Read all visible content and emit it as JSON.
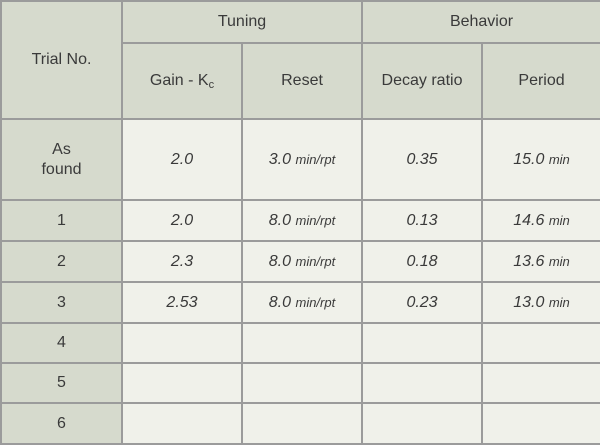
{
  "table": {
    "col_trial": "Trial No.",
    "group_tuning": "Tuning",
    "group_behavior": "Behavior",
    "col_gain": "Gain - K",
    "col_gain_sub": "c",
    "col_reset": "Reset",
    "col_decay": "Decay ratio",
    "col_period": "Period",
    "rows": [
      {
        "trial_line1": "As",
        "trial_line2": "found",
        "gain": "2.0",
        "reset_val": "3.0",
        "reset_unit": "min/rpt",
        "decay": "0.35",
        "period_val": "15.0",
        "period_unit": "min"
      },
      {
        "trial_line1": "1",
        "trial_line2": "",
        "gain": "2.0",
        "reset_val": "8.0",
        "reset_unit": "min/rpt",
        "decay": "0.13",
        "period_val": "14.6",
        "period_unit": "min"
      },
      {
        "trial_line1": "2",
        "trial_line2": "",
        "gain": "2.3",
        "reset_val": "8.0",
        "reset_unit": "min/rpt",
        "decay": "0.18",
        "period_val": "13.6",
        "period_unit": "min"
      },
      {
        "trial_line1": "3",
        "trial_line2": "",
        "gain": "2.53",
        "reset_val": "8.0",
        "reset_unit": "min/rpt",
        "decay": "0.23",
        "period_val": "13.0",
        "period_unit": "min"
      },
      {
        "trial_line1": "4",
        "trial_line2": "",
        "gain": "",
        "reset_val": "",
        "reset_unit": "",
        "decay": "",
        "period_val": "",
        "period_unit": ""
      },
      {
        "trial_line1": "5",
        "trial_line2": "",
        "gain": "",
        "reset_val": "",
        "reset_unit": "",
        "decay": "",
        "period_val": "",
        "period_unit": ""
      },
      {
        "trial_line1": "6",
        "trial_line2": "",
        "gain": "",
        "reset_val": "",
        "reset_unit": "",
        "decay": "",
        "period_val": "",
        "period_unit": ""
      }
    ]
  }
}
